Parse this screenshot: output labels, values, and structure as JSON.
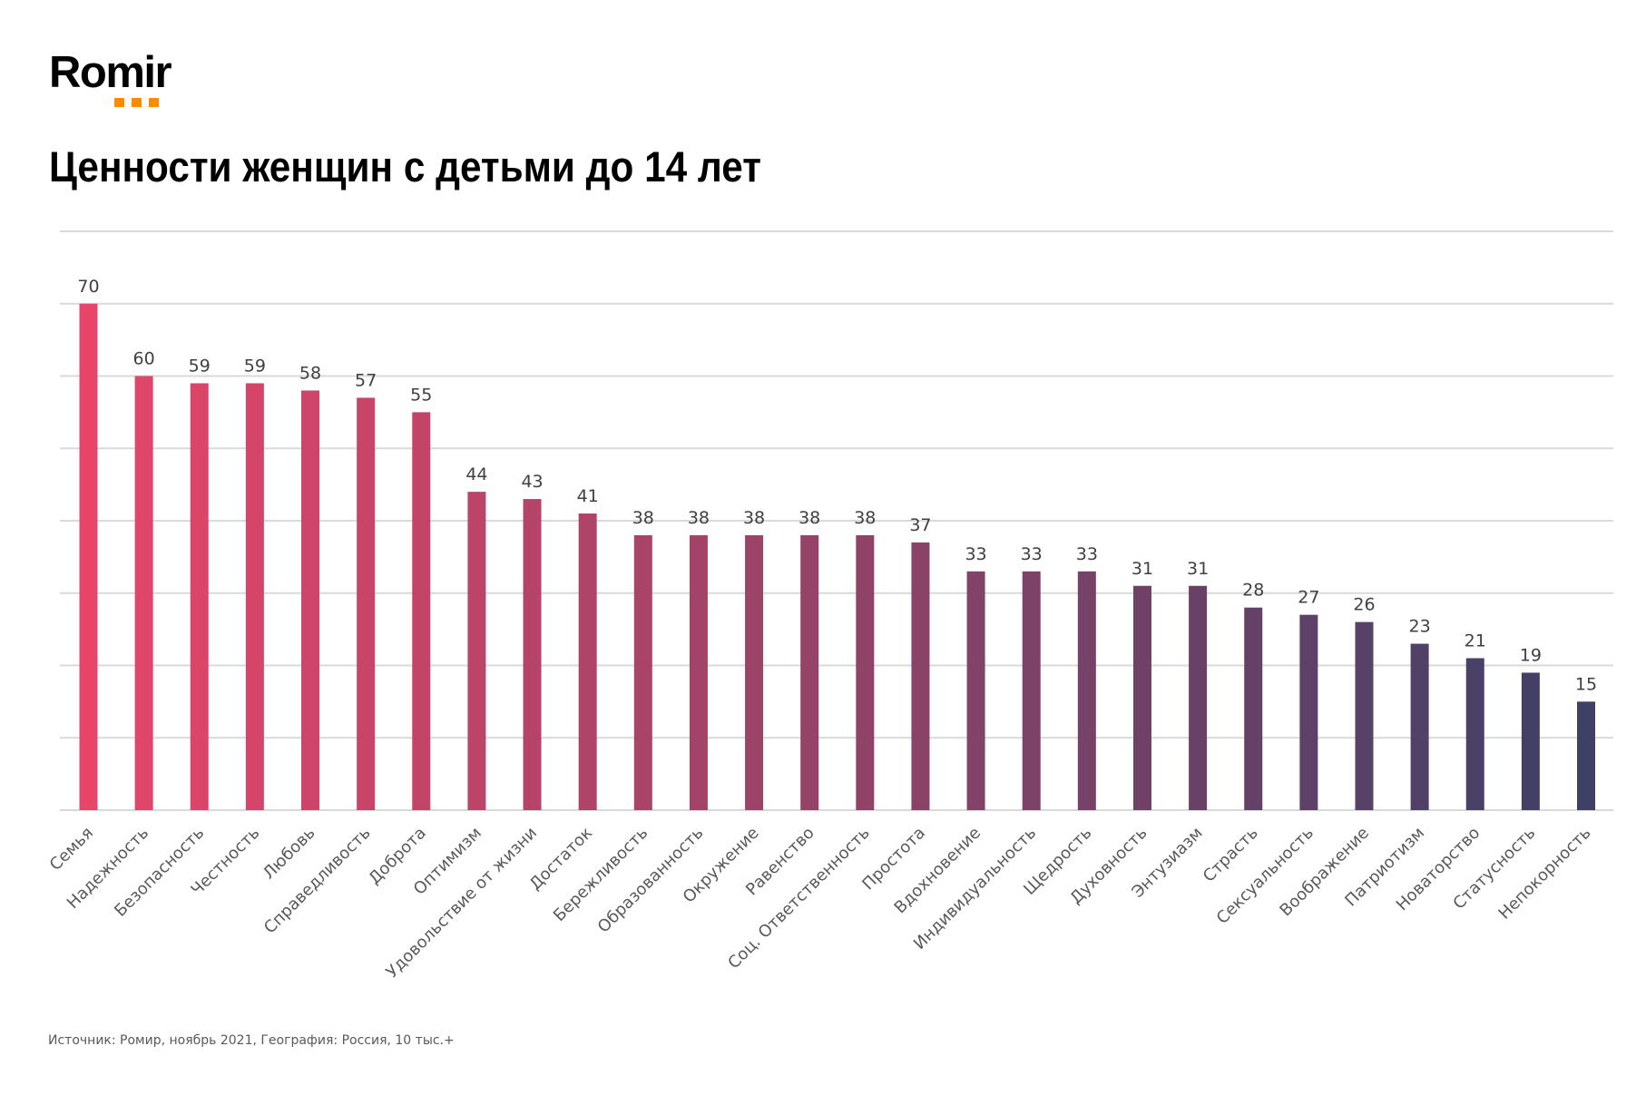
{
  "header": {
    "logo_text": "Romir",
    "logo_accent_color": "#FF8A00",
    "title": "Ценности женщин с детьми до 14 лет"
  },
  "footer": {
    "source": "Источник: Ромир, ноябрь 2021, География: Россия, 10 тыс.+"
  },
  "chart_data": {
    "type": "bar",
    "title": "Ценности женщин с детьми до 14 лет",
    "xlabel": "",
    "ylabel": "",
    "ylim": [
      0,
      80
    ],
    "y_gridlines": [
      0,
      10,
      20,
      30,
      40,
      50,
      60,
      70,
      80
    ],
    "grid": true,
    "legend": "none",
    "y_axis_tick_labels_visible": false,
    "color_start": "#E8456A",
    "color_end": "#3E4065",
    "categories": [
      "Семья",
      "Надежность",
      "Безопасность",
      "Честность",
      "Любовь",
      "Справедливость",
      "Доброта",
      "Оптимизм",
      "Удовольствие от жизни",
      "Достаток",
      "Бережливость",
      "Образованность",
      "Окружение",
      "Равенство",
      "Соц. Ответственность",
      "Простота",
      "Вдохновение",
      "Индивидуальность",
      "Щедрость",
      "Духовность",
      "Энтузиазм",
      "Страсть",
      "Сексуальность",
      "Воображение",
      "Патриотизм",
      "Новаторство",
      "Статусность",
      "Непокорность"
    ],
    "values": [
      70,
      60,
      59,
      59,
      58,
      57,
      55,
      44,
      43,
      41,
      38,
      38,
      38,
      38,
      38,
      37,
      33,
      33,
      33,
      31,
      31,
      28,
      27,
      26,
      23,
      21,
      19,
      15
    ]
  }
}
